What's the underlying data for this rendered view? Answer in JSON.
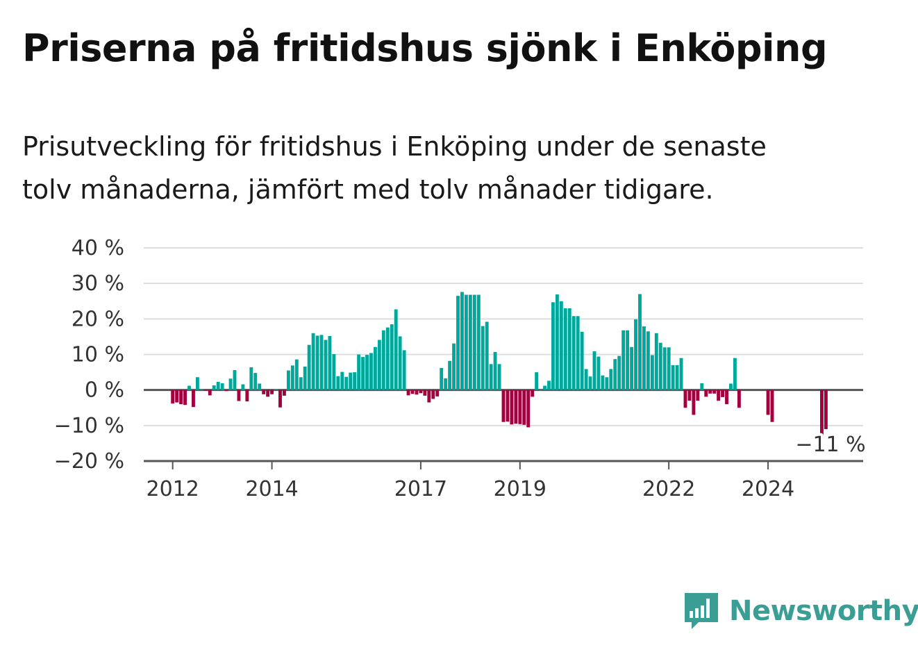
{
  "title": "Priserna på fritidshus sjönk i Enköping",
  "subtitle_lines": [
    "Prisutveckling för fritidshus i Enköping under de senaste",
    "tolv månaderna, jämfört med tolv månader tidigare."
  ],
  "brand": {
    "name": "Newsworthy",
    "logo_icon": "bar-chart-speech-bubble-icon",
    "color": "#3a9e95"
  },
  "colors": {
    "positive": "#00a89b",
    "negative": "#a3003f",
    "grid": "#dddddd",
    "zero_line": "#555555"
  },
  "chart_data": {
    "type": "bar",
    "ylim": [
      -20,
      40
    ],
    "y_ticks": [
      40,
      30,
      20,
      10,
      0,
      -10,
      -20
    ],
    "y_tick_labels": [
      "40 %",
      "30 %",
      "20 %",
      "10 %",
      "0 %",
      "−10 %",
      "−20 %"
    ],
    "x_ticks": [
      "2012",
      "2014",
      "2017",
      "2019",
      "2022",
      "2024"
    ],
    "x_range": [
      "2011-06",
      "2025-12"
    ],
    "grid": true,
    "annotation": {
      "label": "−11 %",
      "x": "2025-01",
      "value": -11
    },
    "series": [
      {
        "x": "2012-01",
        "values": [
          -3.8,
          -3.5,
          -4.0,
          -4.2,
          1.2,
          -4.8,
          3.6,
          0.2,
          -0.2,
          -1.5,
          1.3,
          2.3,
          1.9,
          -0.3,
          3.2,
          5.6,
          -3.1,
          1.6,
          -3.2,
          6.4,
          4.8,
          1.8,
          -1.2,
          -1.9,
          -1.2,
          0.2,
          -4.9,
          -1.6,
          5.5,
          6.9,
          8.6,
          3.6,
          6.6,
          12.7,
          16.0,
          15.3,
          15.5,
          14.1,
          15.2,
          10.1,
          3.9,
          5.1,
          3.7,
          4.9,
          5.0,
          10.0,
          9.3,
          9.9,
          10.4,
          12.1,
          14.1,
          16.8,
          17.6,
          18.5,
          22.7,
          15.1,
          11.2,
          -1.5,
          -1.1,
          -1.3,
          -0.9,
          -1.6,
          -3.5,
          -2.5,
          -1.8,
          6.2,
          3.3,
          8.2,
          13.1,
          26.5,
          27.6,
          26.8,
          26.8,
          26.8,
          26.8,
          18.0,
          19.2,
          7.3,
          10.7,
          7.3,
          -9.0,
          -8.9,
          -9.7,
          -9.5,
          -9.6,
          -9.8,
          -10.5,
          -1.9,
          5.0,
          0.1,
          1.2,
          2.6,
          24.7,
          26.9,
          25.0,
          23.0,
          23.0,
          20.8,
          20.8,
          16.4,
          5.9,
          3.8,
          10.9,
          9.4,
          4.1,
          3.6,
          5.9,
          8.7,
          9.6,
          16.8,
          16.8,
          12.1,
          19.9,
          27.0,
          17.9,
          16.5,
          9.8,
          16.0,
          13.3,
          12.0,
          12.0,
          7.0,
          7.0,
          9.0,
          -5.0,
          -3.0,
          -7.0,
          -3.0,
          1.9,
          -1.9,
          -1.0,
          -1.0,
          -3.0,
          -2.0,
          -4.0,
          1.8,
          9.0,
          -5.0,
          null,
          null,
          null,
          null,
          null,
          null,
          -7.0,
          -9.0,
          null,
          null,
          null,
          null,
          null,
          null,
          null,
          null,
          null,
          null,
          null,
          -13.0,
          -11.0
        ]
      }
    ]
  }
}
